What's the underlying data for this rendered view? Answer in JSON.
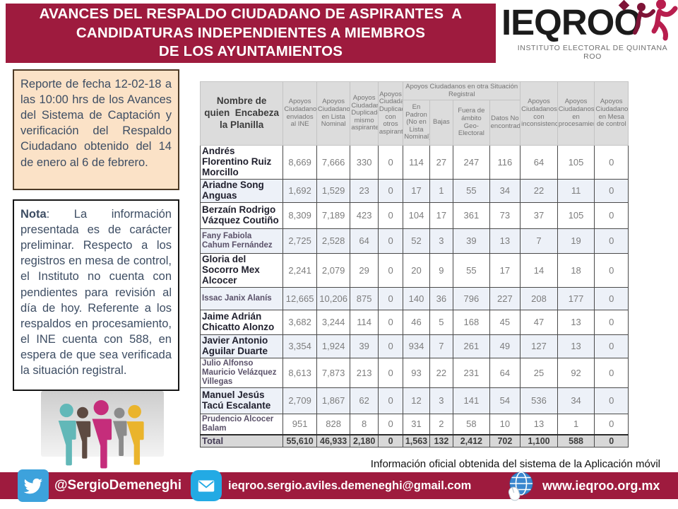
{
  "banner": {
    "title_lines": [
      "AVANCES DEL RESPALDO CIUDADANO DE ASPIRANTES  A",
      "CANDIDATURAS INDEPENDIENTES A MIEMBROS",
      "DE LOS AYUNTAMIENTOS"
    ]
  },
  "logo": {
    "name": "IEQROO",
    "subtitle": "INSTITUTO ELECTORAL DE QUINTANA ROO"
  },
  "report_box": {
    "text": "Reporte de fecha 12-02-18 a las 10:00 hrs de los Avances del Sistema de Captación y verificación del Respaldo Ciudadano obtenido del 14 de enero al 6 de febrero."
  },
  "note_box": {
    "label": "Nota",
    "text": ": La información presentada es de carácter preliminar. Respecto a los registros en mesa de control, el Instituto no cuenta con pendientes para revisión al día de hoy. Referente a los respaldos en procesamiento, el INE cuenta con 588, en espera de que sea verificada la situación registral."
  },
  "table": {
    "name_header": "Nombre de\nquien  Encabeza\nla Planilla",
    "group_header": "Apoyos Ciudadanos en otra Situación Registral",
    "headers": [
      "Apoyos Ciudadanos enviados al INE",
      "Apoyos Ciudadanos en Lista Nominal",
      "Apoyos Ciudadanos Duplicados mismo aspirantes",
      "Apoyos Ciudadanos Duplicados con otros aspirantes",
      "En Padron (No en Lista Nominal)",
      "Bajas",
      "Fuera de ámbito Geo-Electoral",
      "Datos No encontrados",
      "Apoyos Ciudadanos con inconsistencias",
      "Apoyos Ciudadanos en procesamiento",
      "Apoyos Ciudadanos en Mesa de control"
    ],
    "rows": [
      {
        "name": "Andrés Florentino Ruiz Morcillo",
        "muted": false,
        "values": [
          "8,669",
          "7,666",
          "330",
          "0",
          "114",
          "27",
          "247",
          "116",
          "64",
          "105",
          "0"
        ]
      },
      {
        "name": "Ariadne Song Anguas",
        "muted": false,
        "values": [
          "1,692",
          "1,529",
          "23",
          "0",
          "17",
          "1",
          "55",
          "34",
          "22",
          "11",
          "0"
        ]
      },
      {
        "name": "Berzaín Rodrigo Vázquez Coutiño",
        "muted": false,
        "values": [
          "8,309",
          "7,189",
          "423",
          "0",
          "104",
          "17",
          "361",
          "73",
          "37",
          "105",
          "0"
        ]
      },
      {
        "name": "Fany Fabiola Cahum Fernández",
        "muted": true,
        "values": [
          "2,725",
          "2,528",
          "64",
          "0",
          "52",
          "3",
          "39",
          "13",
          "7",
          "19",
          "0"
        ]
      },
      {
        "name": "Gloria del Socorro Mex Alcocer",
        "muted": false,
        "values": [
          "2,241",
          "2,079",
          "29",
          "0",
          "20",
          "9",
          "55",
          "17",
          "14",
          "18",
          "0"
        ]
      },
      {
        "name": "Issac Janix Alanís",
        "muted": true,
        "values": [
          "12,665",
          "10,206",
          "875",
          "0",
          "140",
          "36",
          "796",
          "227",
          "208",
          "177",
          "0"
        ]
      },
      {
        "name": "Jaime Adrián Chicatto Alonzo",
        "muted": false,
        "values": [
          "3,682",
          "3,244",
          "114",
          "0",
          "46",
          "5",
          "168",
          "45",
          "47",
          "13",
          "0"
        ]
      },
      {
        "name": "Javier Antonio Aguilar Duarte",
        "muted": false,
        "values": [
          "3,354",
          "1,924",
          "39",
          "0",
          "934",
          "7",
          "261",
          "49",
          "127",
          "13",
          "0"
        ]
      },
      {
        "name": "Julio Alfonso Mauricio Velázquez Villegas",
        "muted": true,
        "values": [
          "8,613",
          "7,873",
          "213",
          "0",
          "93",
          "22",
          "231",
          "64",
          "25",
          "92",
          "0"
        ]
      },
      {
        "name": "Manuel Jesús Tacú Escalante",
        "muted": false,
        "values": [
          "2,709",
          "1,867",
          "62",
          "0",
          "12",
          "3",
          "141",
          "54",
          "536",
          "34",
          "0"
        ]
      },
      {
        "name": "Prudencio Alcocer Balam",
        "muted": true,
        "values": [
          "951",
          "828",
          "8",
          "0",
          "31",
          "2",
          "58",
          "10",
          "13",
          "1",
          "0"
        ]
      }
    ],
    "total": {
      "label": "Total",
      "values": [
        "55,610",
        "46,933",
        "2,180",
        "0",
        "1,563",
        "132",
        "2,412",
        "702",
        "1,100",
        "588",
        "0"
      ]
    }
  },
  "caption": "Información oficial obtenida del sistema de la Aplicación móvil",
  "footer": {
    "twitter_handle": "@SergioDemeneghi",
    "email": "ieqroo.sergio.aviles.demeneghi@gmail.com",
    "website": "www.ieqroo.org.mx"
  },
  "icons": {
    "twitter": "twitter-bird-icon",
    "mail": "envelope-icon",
    "web": "globe-mouse-icon",
    "logo_mark": "logo-figures-icon",
    "illustration": "people-clipart"
  },
  "colors": {
    "maroon": "#9e1b3e",
    "peach": "#fbe2c7",
    "slate": "#3d4d63",
    "headbg": "#dcdcdc",
    "altrow": "#edf1f8",
    "totalbg": "#d8d8d8",
    "twblue": "#3da2dc",
    "mlblue": "#23aae4",
    "crimson": "#b81e4e"
  }
}
